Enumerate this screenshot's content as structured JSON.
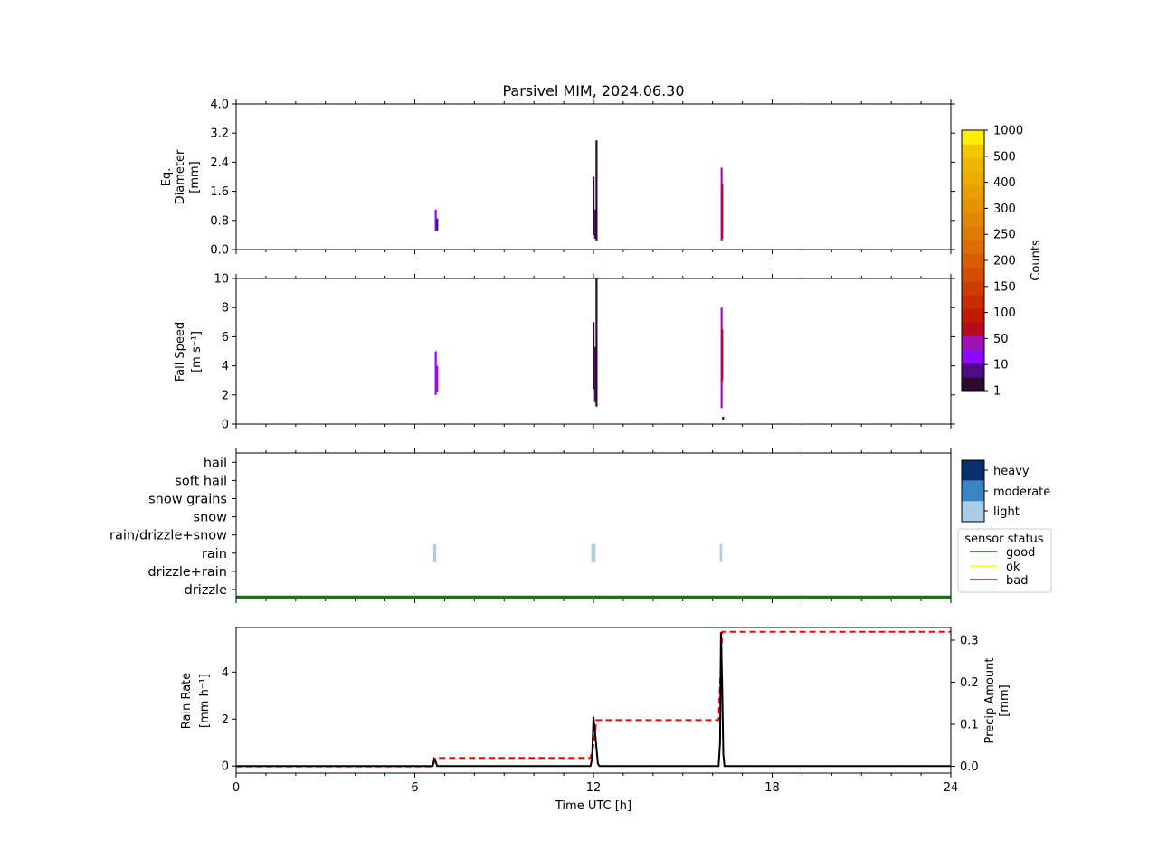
{
  "title": "Parsivel MIM, 2024.06.30",
  "colors": {
    "counts_bins": [
      "#2b0a2e",
      "#4f0a85",
      "#8b0aff",
      "#a012b8",
      "#b50b1a",
      "#c21b00",
      "#c82c00",
      "#ce3d00",
      "#d34e00",
      "#d85d00",
      "#dc6c00",
      "#e07a00",
      "#e48700",
      "#e79300",
      "#ea9f00",
      "#edaa00",
      "#f0b500",
      "#f4c800",
      "#ffee00"
    ],
    "intensity": {
      "light": "#a9cde4",
      "moderate": "#3b85c2",
      "heavy": "#082f6a"
    },
    "status": {
      "good": "#008000",
      "ok": "#ffff00",
      "bad": "#ff0000"
    },
    "rain_rate_line": "#000000",
    "precip_amount_line": "#ff0000"
  },
  "chart_data": [
    {
      "id": "diameter",
      "type": "heatmap",
      "ylabel": [
        "Eq.",
        "Diameter",
        "[mm]"
      ],
      "ylim": [
        0,
        4.0
      ],
      "yticks": [
        "0.0",
        "0.8",
        "1.6",
        "2.4",
        "3.2",
        "4.0"
      ],
      "xlim": [
        0,
        24
      ],
      "bars": [
        {
          "t": 6.7,
          "y0": 0.5,
          "y1": 1.1,
          "c": 2
        },
        {
          "t": 6.75,
          "y0": 0.5,
          "y1": 0.85,
          "c": 1
        },
        {
          "t": 12.0,
          "y0": 0.4,
          "y1": 2.0,
          "c": 0
        },
        {
          "t": 12.05,
          "y0": 0.3,
          "y1": 1.1,
          "c": 1
        },
        {
          "t": 12.1,
          "y0": 0.25,
          "y1": 3.0,
          "c": 0
        },
        {
          "t": 16.3,
          "y0": 0.25,
          "y1": 2.25,
          "c": 3
        },
        {
          "t": 16.32,
          "y0": 0.3,
          "y1": 1.8,
          "c": 4
        }
      ]
    },
    {
      "id": "fallspeed",
      "type": "heatmap",
      "ylabel": [
        "Fall Speed",
        "[m s⁻¹]"
      ],
      "ylim": [
        0,
        10
      ],
      "yticks": [
        "0",
        "2",
        "4",
        "6",
        "8",
        "10"
      ],
      "xlim": [
        0,
        24
      ],
      "bars": [
        {
          "t": 6.7,
          "y0": 2.0,
          "y1": 5.0,
          "c": 2
        },
        {
          "t": 6.75,
          "y0": 2.2,
          "y1": 4.0,
          "c": 3
        },
        {
          "t": 12.0,
          "y0": 2.4,
          "y1": 7.0,
          "c": 0
        },
        {
          "t": 12.05,
          "y0": 1.5,
          "y1": 5.3,
          "c": 1
        },
        {
          "t": 12.1,
          "y0": 1.2,
          "y1": 10.0,
          "c": 0
        },
        {
          "t": 16.3,
          "y0": 1.1,
          "y1": 8.0,
          "c": 3
        },
        {
          "t": 16.32,
          "y0": 3.0,
          "y1": 6.5,
          "c": 4
        },
        {
          "t": 16.35,
          "y0": 0.3,
          "y1": 0.5,
          "c": 0
        }
      ]
    },
    {
      "id": "precip_type",
      "type": "heatmap",
      "categories": [
        "drizzle",
        "drizzle+rain",
        "rain",
        "rain/drizzle+snow",
        "snow",
        "snow grains",
        "soft hail",
        "hail"
      ],
      "xlim": [
        0,
        24
      ],
      "events": [
        {
          "t0": 6.62,
          "t1": 6.72,
          "category": "rain",
          "intensity": "light"
        },
        {
          "t0": 11.93,
          "t1": 12.07,
          "category": "rain",
          "intensity": "light"
        },
        {
          "t0": 16.24,
          "t1": 16.32,
          "category": "rain",
          "intensity": "light"
        }
      ],
      "sensor_status": {
        "value": "good",
        "t0": 0,
        "t1": 24
      }
    },
    {
      "id": "rain",
      "type": "line",
      "xlabel": "Time UTC [h]",
      "xlim": [
        0,
        24
      ],
      "xticks": [
        0,
        6,
        12,
        18,
        24
      ],
      "ylabel_left": [
        "Rain Rate",
        "[mm h⁻¹]"
      ],
      "ylim_left": [
        -0.3,
        5.9
      ],
      "yticks_left": [
        0,
        2,
        4
      ],
      "ylabel_right": [
        "Precip Amount",
        "[mm]"
      ],
      "ylim_right": [
        -0.016,
        0.33
      ],
      "yticks_right": [
        "0.0",
        "0.1",
        "0.2",
        "0.3"
      ],
      "series": [
        {
          "axis": "left",
          "style": "solid",
          "x": [
            0,
            6.6,
            6.65,
            6.7,
            6.75,
            11.9,
            11.95,
            12.0,
            12.05,
            12.15,
            12.2,
            16.2,
            16.25,
            16.28,
            16.32,
            16.36,
            16.4,
            24
          ],
          "y": [
            0,
            0,
            0.3,
            0.2,
            0,
            0,
            0.3,
            2.1,
            1.5,
            0.1,
            0,
            0,
            1.0,
            5.7,
            3.5,
            0.5,
            0,
            0
          ]
        },
        {
          "axis": "right",
          "style": "dashed",
          "x": [
            0,
            6.6,
            6.7,
            11.9,
            12.0,
            12.1,
            16.2,
            16.28,
            16.32,
            24
          ],
          "y": [
            0,
            0,
            0.02,
            0.02,
            0.05,
            0.11,
            0.11,
            0.25,
            0.32,
            0.32
          ]
        }
      ]
    }
  ],
  "colorbar_counts": {
    "label": "Counts",
    "ticks": [
      "1",
      "10",
      "50",
      "100",
      "150",
      "200",
      "250",
      "300",
      "400",
      "500",
      "1000"
    ]
  },
  "intensity_legend": {
    "entries": [
      "light",
      "moderate",
      "heavy"
    ]
  },
  "status_legend": {
    "title": "sensor status",
    "entries": [
      "good",
      "ok",
      "bad"
    ]
  }
}
